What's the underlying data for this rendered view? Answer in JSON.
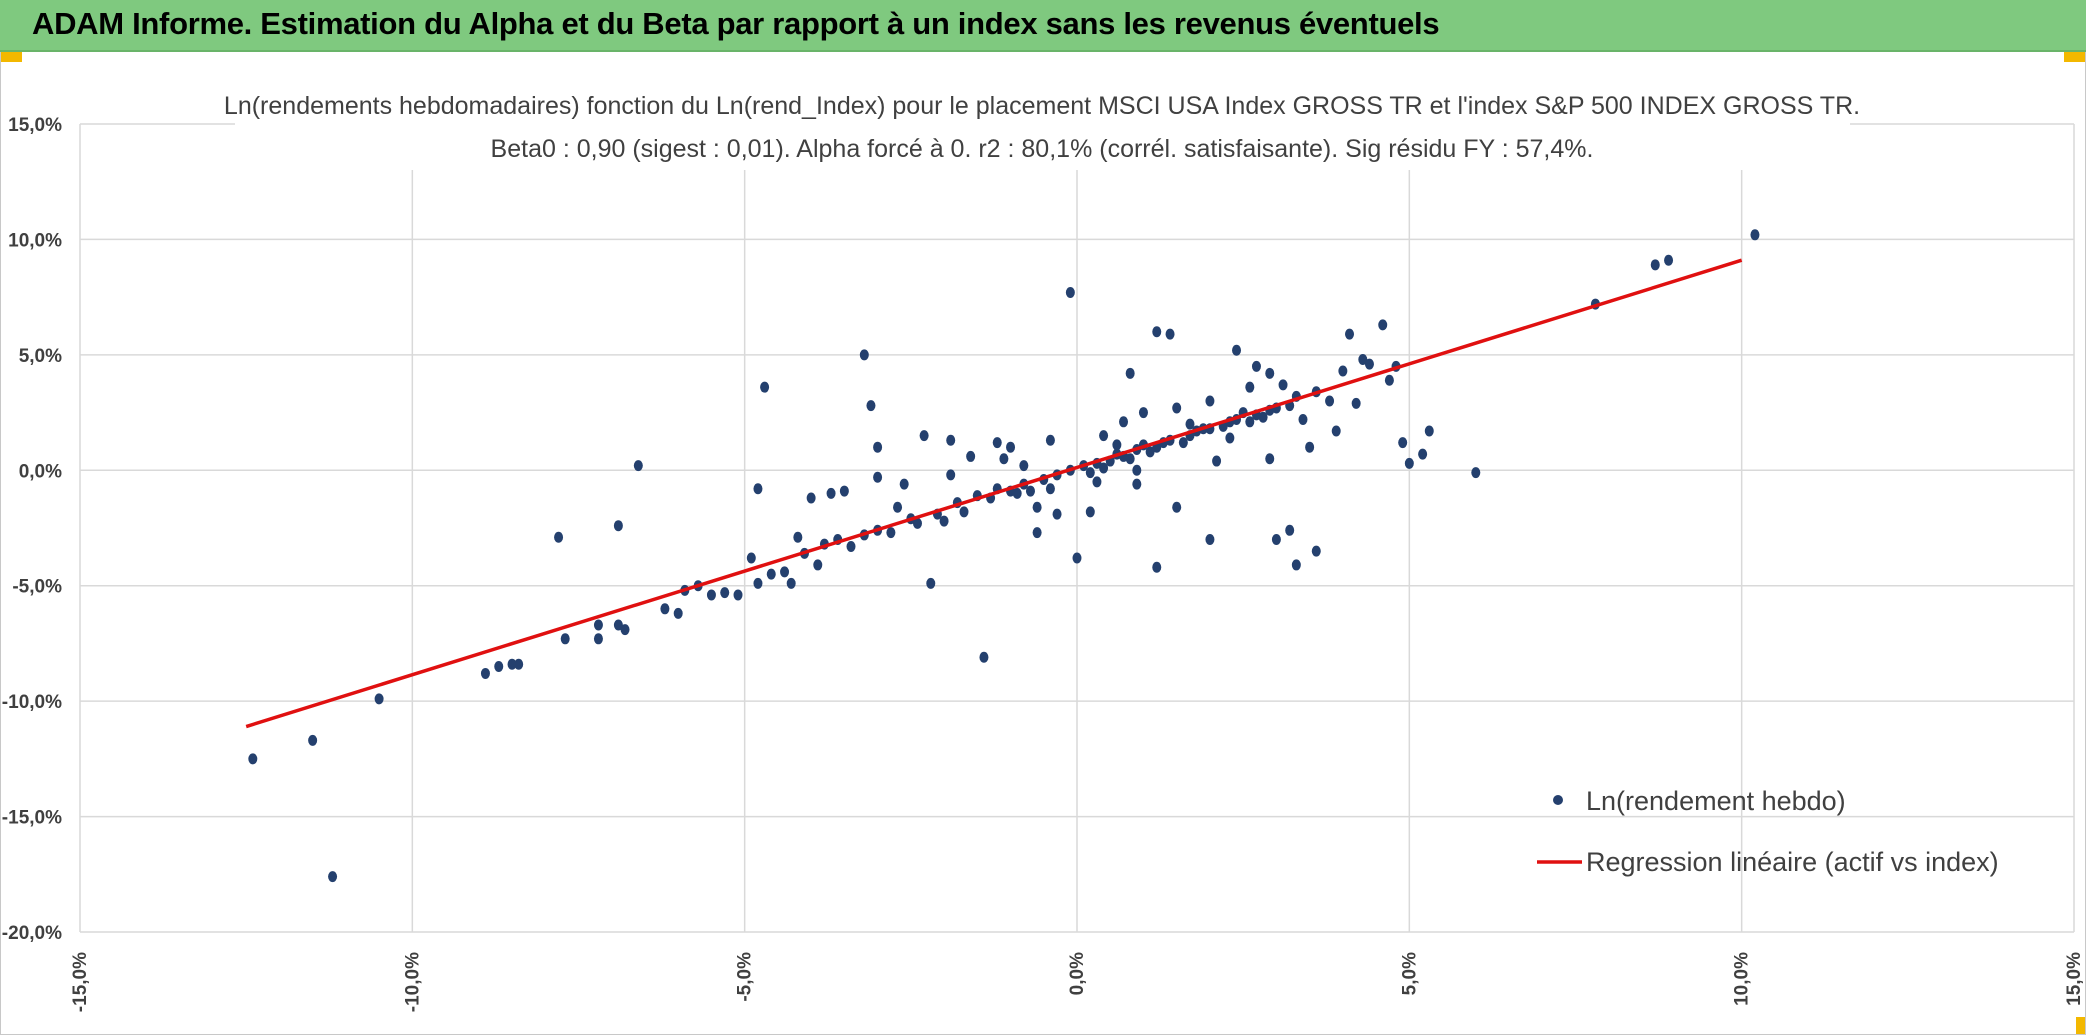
{
  "header": {
    "title": "ADAM Informe. Estimation du Alpha et du Beta par rapport à un index sans les revenus éventuels"
  },
  "colors": {
    "banner": "#7fc97f",
    "accent_corner": "#f3b800",
    "points": "#24406e",
    "regression": "#e01010",
    "grid": "#d9d9d9"
  },
  "chart_data": {
    "type": "scatter",
    "title_line1": "Ln(rendements hebdomadaires) fonction du Ln(rend_Index) pour le placement MSCI USA Index GROSS TR et l'index S&P 500 INDEX GROSS TR.",
    "title_line2": "Beta0 : 0,90 (sigest : 0,01). Alpha forcé à 0. r2 : 80,1% (corrél. satisfaisante). Sig résidu FY : 57,4%.",
    "xlabel": "",
    "ylabel": "",
    "xlim": [
      -15,
      15
    ],
    "ylim": [
      -20,
      15
    ],
    "x_ticks": [
      -15,
      -10,
      -5,
      0,
      5,
      10,
      15
    ],
    "x_tick_labels": [
      "-15,0%",
      "-10,0%",
      "-5,0%",
      "0,0%",
      "5,0%",
      "10,0%",
      "15,0%"
    ],
    "y_ticks": [
      15,
      10,
      5,
      0,
      -5,
      -10,
      -15,
      -20
    ],
    "y_tick_labels": [
      "15,0%",
      "10,0%",
      "5,0%",
      "0,0%",
      "-5,0%",
      "-10,0%",
      "-15,0%",
      "-20,0%"
    ],
    "grid": true,
    "legend_position": "bottom-right",
    "series": [
      {
        "name": "Ln(rendement hebdo)",
        "kind": "scatter",
        "points": [
          [
            -12.4,
            -12.5
          ],
          [
            -11.5,
            -11.7
          ],
          [
            -11.2,
            -17.6
          ],
          [
            -10.5,
            -9.9
          ],
          [
            -8.9,
            -8.8
          ],
          [
            -8.7,
            -8.5
          ],
          [
            -8.5,
            -8.4
          ],
          [
            -8.4,
            -8.4
          ],
          [
            -7.8,
            -2.9
          ],
          [
            -7.7,
            -7.3
          ],
          [
            -7.2,
            -7.3
          ],
          [
            -7.2,
            -6.7
          ],
          [
            -6.9,
            -2.4
          ],
          [
            -6.9,
            -6.7
          ],
          [
            -6.8,
            -6.9
          ],
          [
            -6.6,
            0.2
          ],
          [
            -6.2,
            -6.0
          ],
          [
            -6.0,
            -6.2
          ],
          [
            -5.9,
            -5.2
          ],
          [
            -5.7,
            -5.0
          ],
          [
            -5.5,
            -5.4
          ],
          [
            -5.3,
            -5.3
          ],
          [
            -5.1,
            -5.4
          ],
          [
            -4.9,
            -3.8
          ],
          [
            -4.8,
            -4.9
          ],
          [
            -4.8,
            -0.8
          ],
          [
            -4.7,
            3.6
          ],
          [
            -4.6,
            -4.5
          ],
          [
            -4.4,
            -4.4
          ],
          [
            -4.3,
            -4.9
          ],
          [
            -4.2,
            -2.9
          ],
          [
            -4.0,
            -1.2
          ],
          [
            -3.9,
            -4.1
          ],
          [
            -3.7,
            -1.0
          ],
          [
            -3.5,
            -0.9
          ],
          [
            -3.2,
            5.0
          ],
          [
            -3.1,
            2.8
          ],
          [
            -3.0,
            1.0
          ],
          [
            -3.0,
            -0.3
          ],
          [
            -2.6,
            -0.6
          ],
          [
            -2.3,
            1.5
          ],
          [
            -2.2,
            -4.9
          ],
          [
            -1.9,
            1.3
          ],
          [
            -1.6,
            0.6
          ],
          [
            -1.4,
            -8.1
          ],
          [
            -1.2,
            1.2
          ],
          [
            -1.0,
            1.0
          ],
          [
            -0.8,
            0.2
          ],
          [
            -0.6,
            -2.7
          ],
          [
            -0.4,
            -0.8
          ],
          [
            -0.1,
            7.7
          ],
          [
            0.0,
            -3.8
          ],
          [
            0.3,
            -0.5
          ],
          [
            0.6,
            1.1
          ],
          [
            0.7,
            2.1
          ],
          [
            0.8,
            4.2
          ],
          [
            1.0,
            2.5
          ],
          [
            1.2,
            6.0
          ],
          [
            1.4,
            5.9
          ],
          [
            1.5,
            -1.6
          ],
          [
            1.2,
            -4.2
          ],
          [
            1.7,
            2.0
          ],
          [
            2.0,
            -3.0
          ],
          [
            2.0,
            3.0
          ],
          [
            2.4,
            5.2
          ],
          [
            2.6,
            3.6
          ],
          [
            2.7,
            4.5
          ],
          [
            2.9,
            4.2
          ],
          [
            3.0,
            -3.0
          ],
          [
            3.2,
            -2.6
          ],
          [
            3.3,
            -4.1
          ],
          [
            3.6,
            -3.5
          ],
          [
            3.8,
            3.0
          ],
          [
            4.1,
            5.9
          ],
          [
            4.3,
            4.8
          ],
          [
            4.6,
            6.3
          ],
          [
            4.9,
            1.2
          ],
          [
            5.0,
            0.3
          ],
          [
            5.2,
            0.7
          ],
          [
            5.3,
            1.7
          ],
          [
            6.0,
            -0.1
          ],
          [
            7.8,
            7.2
          ],
          [
            8.7,
            8.9
          ],
          [
            8.9,
            9.1
          ],
          [
            10.2,
            10.2
          ],
          [
            -0.6,
            -1.6
          ],
          [
            -0.3,
            -1.9
          ],
          [
            0.9,
            0.0
          ],
          [
            1.1,
            0.8
          ],
          [
            2.1,
            0.4
          ],
          [
            2.3,
            1.4
          ],
          [
            2.8,
            2.3
          ],
          [
            3.1,
            3.7
          ],
          [
            3.4,
            2.2
          ],
          [
            3.6,
            3.4
          ],
          [
            3.9,
            1.7
          ],
          [
            4.0,
            4.3
          ],
          [
            4.2,
            2.9
          ],
          [
            4.4,
            4.6
          ],
          [
            -3.6,
            -3.0
          ],
          [
            -3.4,
            -3.3
          ],
          [
            -3.2,
            -2.8
          ],
          [
            -3.0,
            -2.6
          ],
          [
            -2.8,
            -2.7
          ],
          [
            -2.5,
            -2.1
          ],
          [
            -2.4,
            -2.3
          ],
          [
            -2.1,
            -1.9
          ],
          [
            -1.8,
            -1.4
          ],
          [
            -1.5,
            -1.1
          ],
          [
            -1.2,
            -0.8
          ],
          [
            -1.0,
            -0.9
          ],
          [
            -0.8,
            -0.6
          ],
          [
            -0.5,
            -0.4
          ],
          [
            -0.3,
            -0.2
          ],
          [
            -0.1,
            0.0
          ],
          [
            0.1,
            0.2
          ],
          [
            0.3,
            0.3
          ],
          [
            0.5,
            0.4
          ],
          [
            0.7,
            0.6
          ],
          [
            0.9,
            0.9
          ],
          [
            1.2,
            1.0
          ],
          [
            1.4,
            1.3
          ],
          [
            1.7,
            1.5
          ],
          [
            1.9,
            1.8
          ],
          [
            2.2,
            1.9
          ],
          [
            2.4,
            2.2
          ],
          [
            2.7,
            2.4
          ],
          [
            2.9,
            2.6
          ],
          [
            3.2,
            2.8
          ],
          [
            -2.0,
            -2.2
          ],
          [
            -1.7,
            -1.8
          ],
          [
            -1.3,
            -1.2
          ],
          [
            -0.9,
            -1.0
          ],
          [
            -0.7,
            -0.9
          ],
          [
            0.2,
            -0.1
          ],
          [
            0.4,
            0.1
          ],
          [
            0.6,
            0.7
          ],
          [
            0.8,
            0.5
          ],
          [
            1.0,
            1.1
          ],
          [
            1.3,
            1.2
          ],
          [
            1.6,
            1.2
          ],
          [
            1.8,
            1.7
          ],
          [
            2.0,
            1.8
          ],
          [
            2.3,
            2.1
          ],
          [
            2.5,
            2.5
          ],
          [
            2.6,
            2.1
          ],
          [
            3.0,
            2.7
          ],
          [
            3.3,
            3.2
          ],
          [
            -1.1,
            0.5
          ],
          [
            -0.4,
            1.3
          ],
          [
            0.4,
            1.5
          ],
          [
            1.5,
            2.7
          ],
          [
            0.2,
            -1.8
          ],
          [
            0.9,
            -0.6
          ],
          [
            -2.7,
            -1.6
          ],
          [
            -3.8,
            -3.2
          ],
          [
            -4.1,
            -3.6
          ],
          [
            -1.9,
            -0.2
          ],
          [
            2.9,
            0.5
          ],
          [
            3.5,
            1.0
          ],
          [
            4.7,
            3.9
          ],
          [
            4.8,
            4.5
          ]
        ]
      },
      {
        "name": "Regression linéaire (actif vs index)",
        "kind": "line",
        "points": [
          [
            -12.5,
            -11.1
          ],
          [
            10.0,
            9.1
          ]
        ]
      }
    ]
  }
}
